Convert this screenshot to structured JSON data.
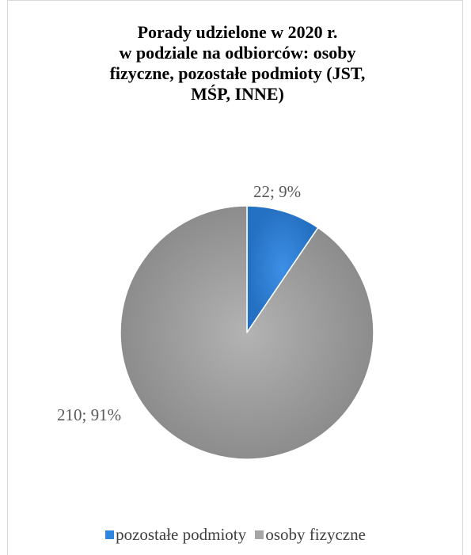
{
  "chart_data": {
    "type": "pie",
    "title_lines": [
      "Porady udzielone w 2020 r.",
      "w podziale na odbiorców: osoby",
      "fizyczne, pozostałe podmioty (JST,",
      "MŚP, INNE)"
    ],
    "slices": [
      {
        "name": "pozostałe podmioty",
        "value": 22,
        "percent": 9,
        "label": "22; 9%",
        "color": "#2e86de"
      },
      {
        "name": "osoby fizyczne",
        "value": 210,
        "percent": 91,
        "label": "210; 91%",
        "color": "#a6a6a6"
      }
    ],
    "legend_position": "bottom",
    "start_angle": "top",
    "direction": "clockwise"
  }
}
